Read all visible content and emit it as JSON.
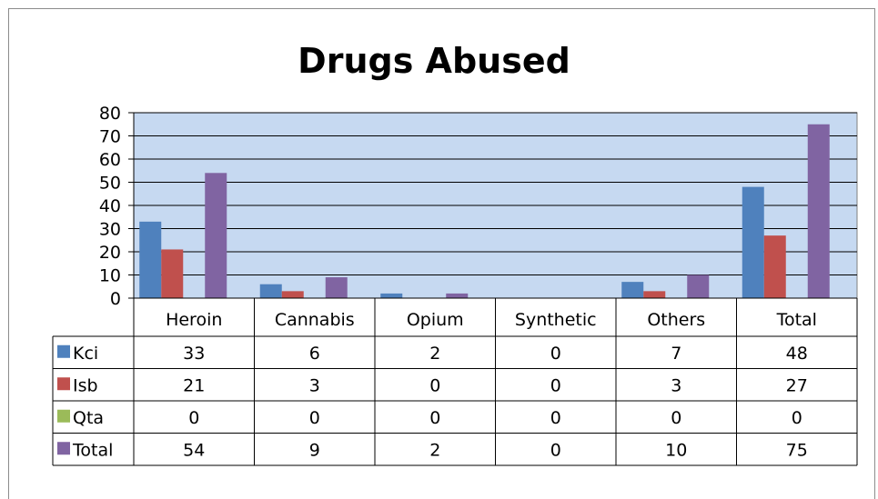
{
  "chart_data": {
    "type": "bar",
    "title": "Drugs Abused",
    "categories": [
      "Heroin",
      "Cannabis",
      "Opium",
      "Synthetic",
      "Others",
      "Total"
    ],
    "series": [
      {
        "name": "Kci",
        "color": "#4f81bd",
        "values": [
          33,
          6,
          2,
          0,
          7,
          48
        ]
      },
      {
        "name": "Isb",
        "color": "#c0504d",
        "values": [
          21,
          3,
          0,
          0,
          3,
          27
        ]
      },
      {
        "name": "Qta",
        "color": "#9bbb59",
        "values": [
          0,
          0,
          0,
          0,
          0,
          0
        ]
      },
      {
        "name": "Total",
        "color": "#8064a2",
        "values": [
          54,
          9,
          2,
          0,
          10,
          75
        ]
      }
    ],
    "ylim": [
      0,
      80
    ],
    "yticks": [
      "0",
      "10",
      "20",
      "30",
      "40",
      "50",
      "60",
      "70",
      "80"
    ],
    "grid": true,
    "plot_background": "#c6d9f1",
    "legend": "data-table"
  }
}
